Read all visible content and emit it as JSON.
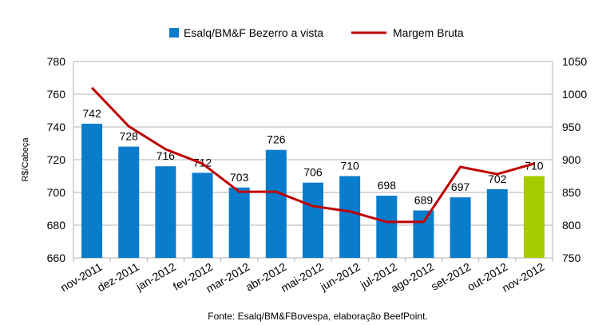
{
  "chart_data": {
    "type": "bar+line",
    "categories": [
      "nov-2011",
      "dez-2011",
      "jan-2012",
      "fev-2012",
      "mar-2012",
      "abr-2012",
      "mai-2012",
      "jun-2012",
      "jul-2012",
      "ago-2012",
      "set-2012",
      "out-2012",
      "nov-2012"
    ],
    "series": [
      {
        "name": "Esalq/BM&F Bezerro a vista",
        "type": "bar",
        "axis": "left",
        "values": [
          742,
          728,
          716,
          712,
          703,
          726,
          706,
          710,
          698,
          689,
          697,
          702,
          710
        ],
        "color": "#0a7ccc",
        "highlight_last_color": "#a6cc00"
      },
      {
        "name": "Margem Bruta",
        "type": "line",
        "axis": "right",
        "values": [
          1010,
          951,
          916,
          894,
          851,
          851,
          829,
          821,
          805,
          805,
          889,
          878,
          894
        ],
        "color": "#c00000"
      }
    ],
    "ylabel": "R$/Cabeça",
    "ylim": [
      660,
      780
    ],
    "yticks": [
      660,
      680,
      700,
      720,
      740,
      760,
      780
    ],
    "y2lim": [
      750,
      1050
    ],
    "y2ticks": [
      750,
      800,
      850,
      900,
      950,
      1000,
      1050
    ],
    "grid": true,
    "legend": "top-center",
    "source": "Fonte: Esalq/BM&FBovespa, elaboração BeefPoint."
  }
}
